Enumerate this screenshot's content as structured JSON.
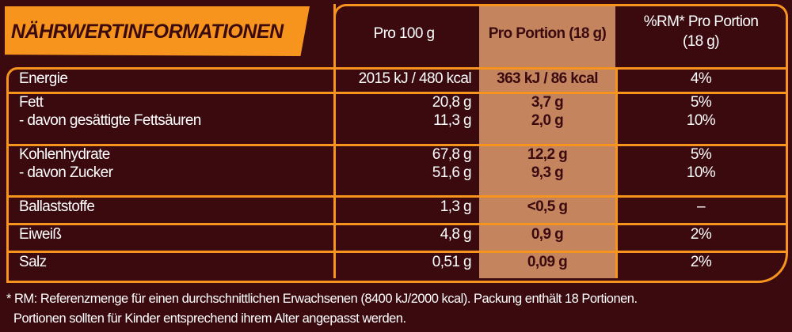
{
  "title": "NÄHRWERTINFORMATIONEN",
  "colors": {
    "background": "#3a0a0f",
    "accent": "#f7941d",
    "highlight_column": "#c4845e"
  },
  "headers": {
    "per100": "Pro 100 g",
    "per_portion": "Pro Portion (18 g)",
    "rm_line1": "%RM* Pro Portion",
    "rm_line2": "(18 g)"
  },
  "rows": [
    {
      "labels": [
        "Energie"
      ],
      "per100": [
        "2015 kJ / 480 kcal"
      ],
      "portion": [
        "363 kJ / 86 kcal"
      ],
      "rm": [
        "4%"
      ]
    },
    {
      "labels": [
        "Fett",
        "- davon gesättigte Fettsäuren"
      ],
      "per100": [
        "20,8 g",
        "11,3 g"
      ],
      "portion": [
        "3,7 g",
        "2,0 g"
      ],
      "rm": [
        "5%",
        "10%"
      ]
    },
    {
      "labels": [
        "Kohlenhydrate",
        "- davon Zucker"
      ],
      "per100": [
        "67,8 g",
        "51,6 g"
      ],
      "portion": [
        "12,2 g",
        "9,3 g"
      ],
      "rm": [
        "5%",
        "10%"
      ]
    },
    {
      "labels": [
        "Ballaststoffe"
      ],
      "per100": [
        "1,3 g"
      ],
      "portion": [
        "<0,5 g"
      ],
      "rm": [
        "–"
      ]
    },
    {
      "labels": [
        "Eiweiß"
      ],
      "per100": [
        "4,8 g"
      ],
      "portion": [
        "0,9 g"
      ],
      "rm": [
        "2%"
      ]
    },
    {
      "labels": [
        "Salz"
      ],
      "per100": [
        "0,51 g"
      ],
      "portion": [
        "0,09 g"
      ],
      "rm": [
        "2%"
      ]
    }
  ],
  "footnote": {
    "line1": "* RM: Referenzmenge für einen durchschnittlichen Erwachsenen (8400 kJ/2000 kcal). Packung enthält 18 Portionen.",
    "line2": "Portionen sollten für Kinder entsprechend ihrem Alter angepasst werden."
  }
}
